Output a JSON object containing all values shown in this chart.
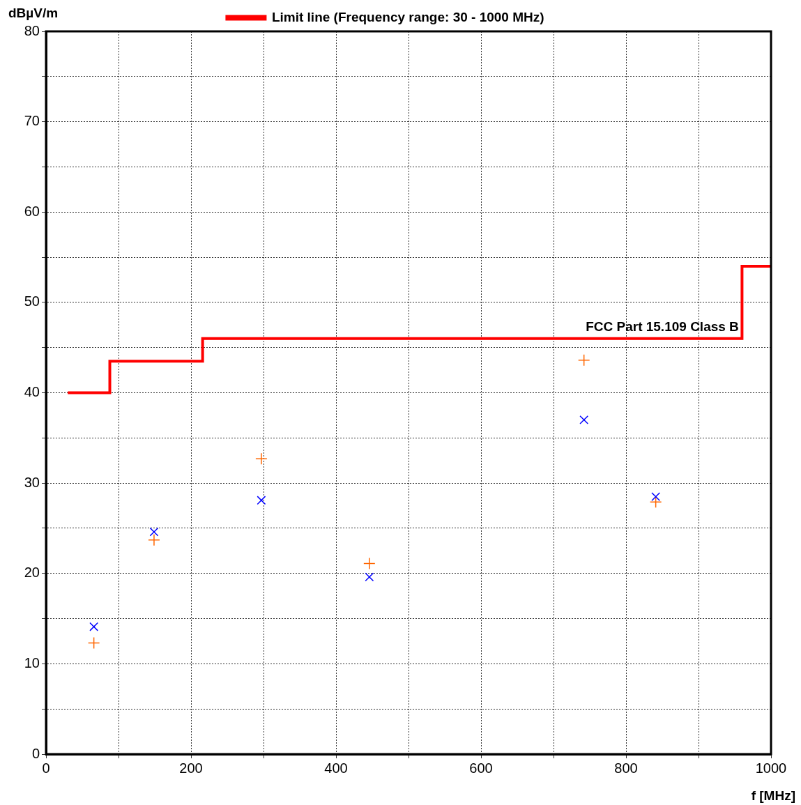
{
  "chart_data": {
    "type": "scatter",
    "xlabel": "f [MHz]",
    "ylabel": "dBµV/m",
    "legend": "top",
    "grid": true,
    "xlim": [
      0,
      1000
    ],
    "xticks": [
      0,
      {
        "value": 100,
        "label": null
      },
      200,
      {
        "value": 300,
        "label": null
      },
      400,
      {
        "value": 500,
        "label": null
      },
      600,
      {
        "value": 700,
        "label": null
      },
      800,
      {
        "value": 900,
        "label": null
      },
      1000
    ],
    "ylim": [
      0,
      80
    ],
    "yticks": [
      0,
      {
        "value": 5,
        "label": null
      },
      10,
      {
        "value": 15,
        "label": null
      },
      20,
      {
        "value": 25,
        "label": null
      },
      30,
      {
        "value": 35,
        "label": null
      },
      40,
      {
        "value": 45,
        "label": null
      },
      50,
      {
        "value": 55,
        "label": null
      },
      60,
      {
        "value": 65,
        "label": null
      },
      70,
      {
        "value": 75,
        "label": null
      },
      80
    ],
    "series": [
      {
        "name": "Limit line (Frequency range: 30 - 1000 MHz)",
        "type": "step",
        "color": "#ff0000",
        "marker": "none",
        "x": [
          30,
          88,
          216,
          960,
          1000
        ],
        "values": [
          40,
          43.5,
          46,
          54,
          54
        ]
      },
      {
        "color": "#0000ff",
        "marker": "cross",
        "x": [
          66,
          149,
          297,
          446,
          742,
          841
        ],
        "values": [
          14.1,
          24.6,
          28.1,
          19.6,
          37.0,
          28.5
        ]
      },
      {
        "color": "#ff6600",
        "marker": "plus",
        "x": [
          66,
          149,
          297,
          446,
          742,
          841
        ],
        "values": [
          12.3,
          23.7,
          32.7,
          21.1,
          43.6,
          27.9
        ]
      }
    ],
    "annotations": [
      {
        "text": "FCC Part 15.109 Class B",
        "x": 850,
        "y": 46
      }
    ]
  }
}
